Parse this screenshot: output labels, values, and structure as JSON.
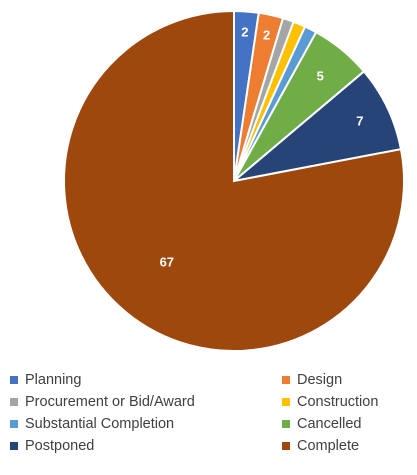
{
  "chart_data": {
    "type": "pie",
    "slices": [
      {
        "name": "Planning",
        "value": 2,
        "color": "#4472C4",
        "label": "2"
      },
      {
        "name": "Design",
        "value": 2,
        "color": "#ED7D31",
        "label": "2"
      },
      {
        "name": "Procurement or Bid/Award",
        "value": 0.9,
        "color": "#A5A5A5",
        "label": ""
      },
      {
        "name": "Construction",
        "value": 1,
        "color": "#FFC000",
        "label": ""
      },
      {
        "name": "Substantial Completion",
        "value": 1,
        "color": "#5B9BD5",
        "label": ""
      },
      {
        "name": "Cancelled",
        "value": 5,
        "color": "#70AD47",
        "label": "5"
      },
      {
        "name": "Postponed",
        "value": 7,
        "color": "#264478",
        "label": "7"
      },
      {
        "name": "Complete",
        "value": 67,
        "color": "#9E480E",
        "label": "67"
      }
    ],
    "legend_position": "bottom",
    "legend_rows": [
      [
        "Planning",
        "Design"
      ],
      [
        "Procurement or Bid/Award",
        "Construction"
      ],
      [
        "Substantial Completion",
        "Cancelled"
      ],
      [
        "Postponed",
        "Complete"
      ]
    ]
  }
}
